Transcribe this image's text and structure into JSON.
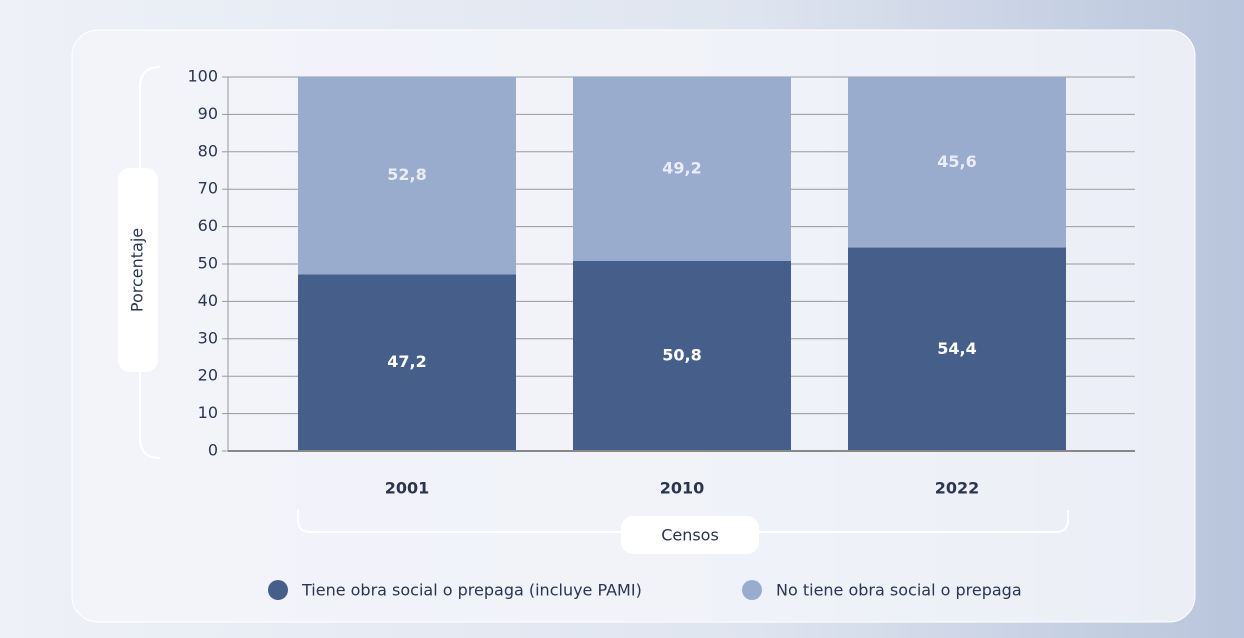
{
  "chart_data": {
    "type": "bar",
    "stacked": true,
    "x_label": "Censos",
    "y_label": "Porcentaje",
    "categories": [
      "2001",
      "2010",
      "2022"
    ],
    "series": [
      {
        "name": "Tiene obra social o prepaga (incluye PAMI)",
        "color": "#455e8a",
        "values": [
          47.2,
          50.8,
          54.4
        ],
        "value_labels": [
          "47,2",
          "50,8",
          "54,4"
        ]
      },
      {
        "name": "No tiene obra social o prepaga",
        "color": "#9aaccd",
        "values": [
          52.8,
          49.2,
          45.6
        ],
        "value_labels": [
          "52,8",
          "49,2",
          "45,6"
        ]
      }
    ],
    "ylim": [
      0,
      100
    ],
    "yticks": [
      0,
      10,
      20,
      30,
      40,
      50,
      60,
      70,
      80,
      90,
      100
    ],
    "grid": true
  }
}
